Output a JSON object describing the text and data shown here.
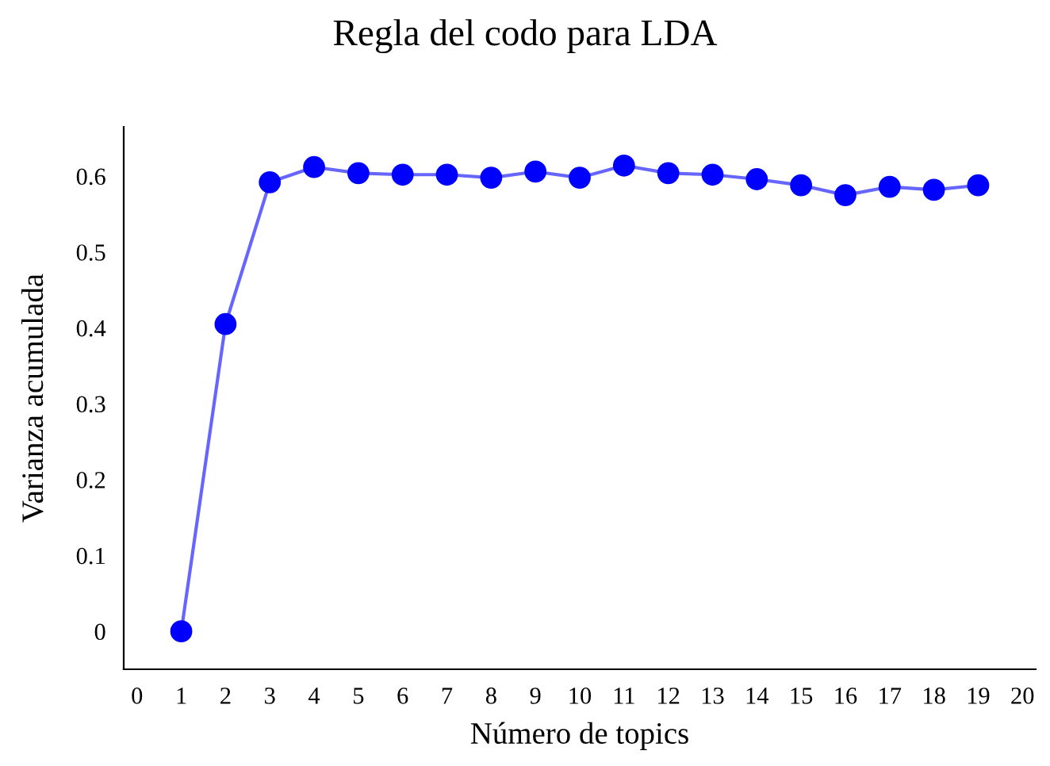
{
  "chart_data": {
    "type": "line",
    "title": "Regla del codo para LDA",
    "xlabel": "Número de topics",
    "ylabel": "Varianza acumulada",
    "x": [
      1,
      2,
      3,
      4,
      5,
      6,
      7,
      8,
      9,
      10,
      11,
      12,
      13,
      14,
      15,
      16,
      17,
      18,
      19
    ],
    "series": [
      {
        "color": "#0000ff",
        "values": [
          0,
          0.405,
          0.592,
          0.612,
          0.604,
          0.602,
          0.602,
          0.598,
          0.606,
          0.598,
          0.614,
          0.604,
          0.602,
          0.596,
          0.588,
          0.575,
          0.586,
          0.582,
          0.588
        ]
      }
    ],
    "xlim": [
      -0.3,
      20.3
    ],
    "ylim": [
      -0.05,
      0.665
    ],
    "xticks": [
      0,
      1,
      2,
      3,
      4,
      5,
      6,
      7,
      8,
      9,
      10,
      11,
      12,
      13,
      14,
      15,
      16,
      17,
      18,
      19,
      20
    ],
    "yticks": [
      0,
      0.1,
      0.2,
      0.3,
      0.4,
      0.5,
      0.6
    ],
    "marker": "circle",
    "line_style": "solid",
    "grid": false,
    "legend": false
  }
}
